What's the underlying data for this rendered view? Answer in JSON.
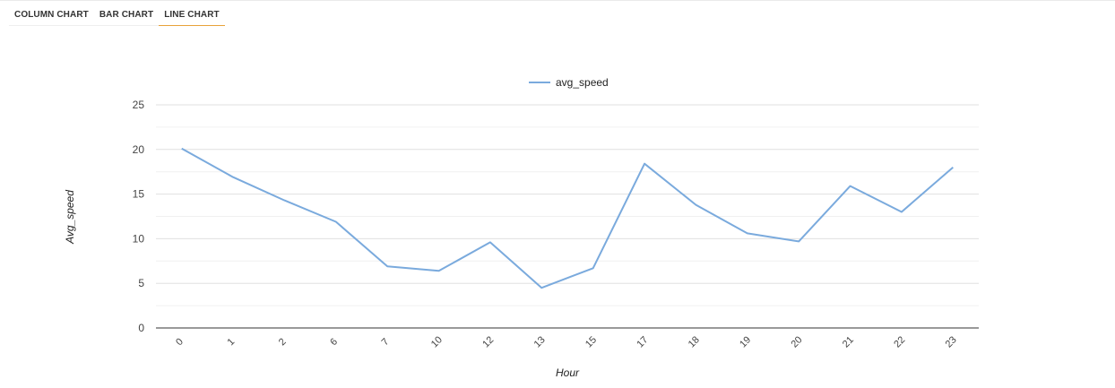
{
  "tabs": [
    {
      "label": "COLUMN CHART",
      "active": false
    },
    {
      "label": "BAR CHART",
      "active": false
    },
    {
      "label": "LINE CHART",
      "active": true
    }
  ],
  "colors": {
    "series": "#7aaadd",
    "grid": "#e0e0e0",
    "minor_grid": "#f0f0f0",
    "baseline": "#333333",
    "tab_accent": "#e8a33a"
  },
  "chart_data": {
    "type": "line",
    "x": [
      "0",
      "1",
      "2",
      "6",
      "7",
      "10",
      "12",
      "13",
      "15",
      "17",
      "18",
      "19",
      "20",
      "21",
      "22",
      "23"
    ],
    "series": [
      {
        "name": "avg_speed",
        "values": [
          20.1,
          16.9,
          14.3,
          11.9,
          6.9,
          6.4,
          9.6,
          4.5,
          6.7,
          18.4,
          13.8,
          10.6,
          9.7,
          15.9,
          13.0,
          18.0
        ]
      }
    ],
    "xlabel": "Hour",
    "ylabel": "Avg_speed",
    "ylim": [
      0,
      25
    ],
    "yticks": [
      "0",
      "5",
      "10",
      "15",
      "20",
      "25"
    ],
    "grid": true,
    "legend": "top-center"
  }
}
